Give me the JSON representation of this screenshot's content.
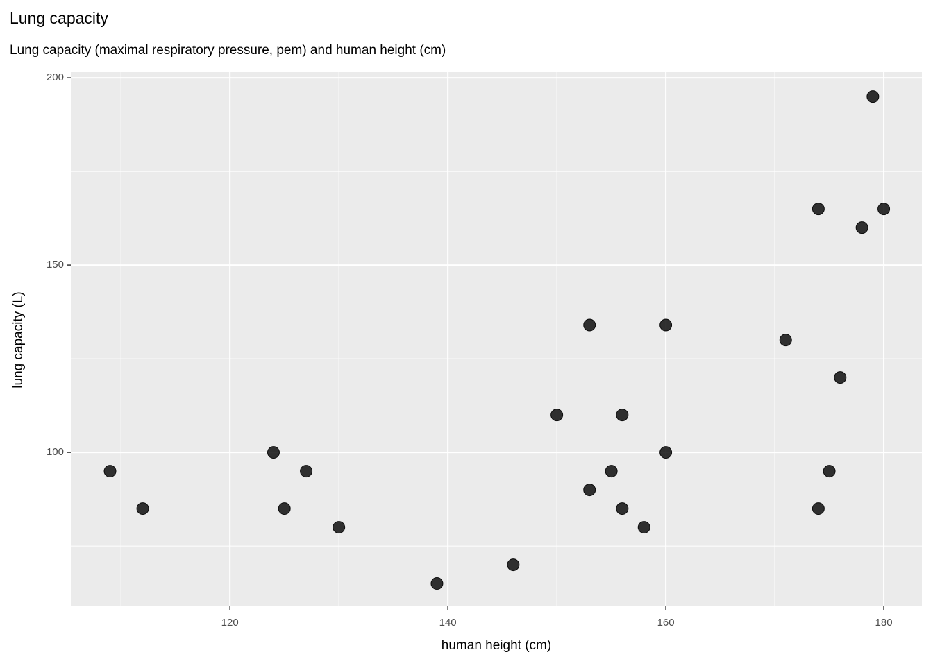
{
  "chart_data": {
    "type": "scatter",
    "title": "Lung capacity",
    "subtitle": "Lung capacity (maximal respiratory pressure, pem) and human height (cm)",
    "x_label": "human height (cm)",
    "y_label": "lung capacity (L)",
    "x": [
      109,
      112,
      124,
      127,
      125,
      130,
      139,
      146,
      150,
      153,
      153,
      155,
      156,
      156,
      158,
      160,
      160,
      171,
      174,
      174,
      175,
      176,
      178,
      179,
      180
    ],
    "values": [
      95,
      85,
      100,
      95,
      85,
      80,
      65,
      70,
      110,
      134,
      90,
      95,
      110,
      85,
      80,
      134,
      100,
      130,
      165,
      85,
      95,
      120,
      160,
      195,
      165
    ],
    "color": "#000000",
    "xlim": [
      105.4,
      183.5
    ],
    "ylim": [
      58.9,
      201.5
    ],
    "xticks": [
      120,
      140,
      160,
      180
    ],
    "yticks": [
      100,
      150,
      200
    ],
    "xminorticks": [
      110,
      130,
      150,
      170
    ],
    "yminorticks": [
      75,
      125,
      175
    ],
    "grid": true
  }
}
